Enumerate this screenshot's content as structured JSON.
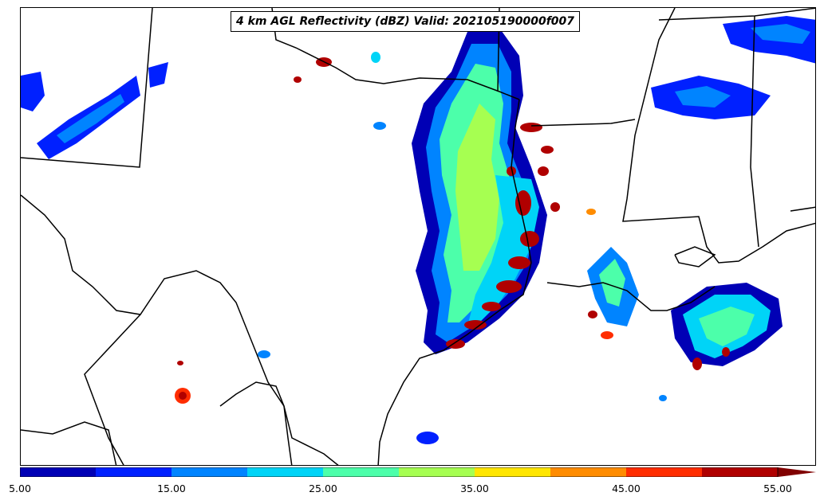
{
  "title": "4 km AGL Reflectivity (dBZ) Valid: 202105190000f007",
  "colorbar": {
    "colors": [
      "#0000b5",
      "#0020ff",
      "#0084ff",
      "#00d4f7",
      "#4cffaa",
      "#a6ff51",
      "#ffe600",
      "#ff8c00",
      "#ff2d00",
      "#b00000"
    ],
    "extend_color": "#800000",
    "tick_labels": [
      "5.00",
      "15.00",
      "25.00",
      "35.00",
      "45.00",
      "55.00"
    ]
  },
  "map": {
    "land_color": "#ffffff",
    "border_color": "#000000"
  }
}
